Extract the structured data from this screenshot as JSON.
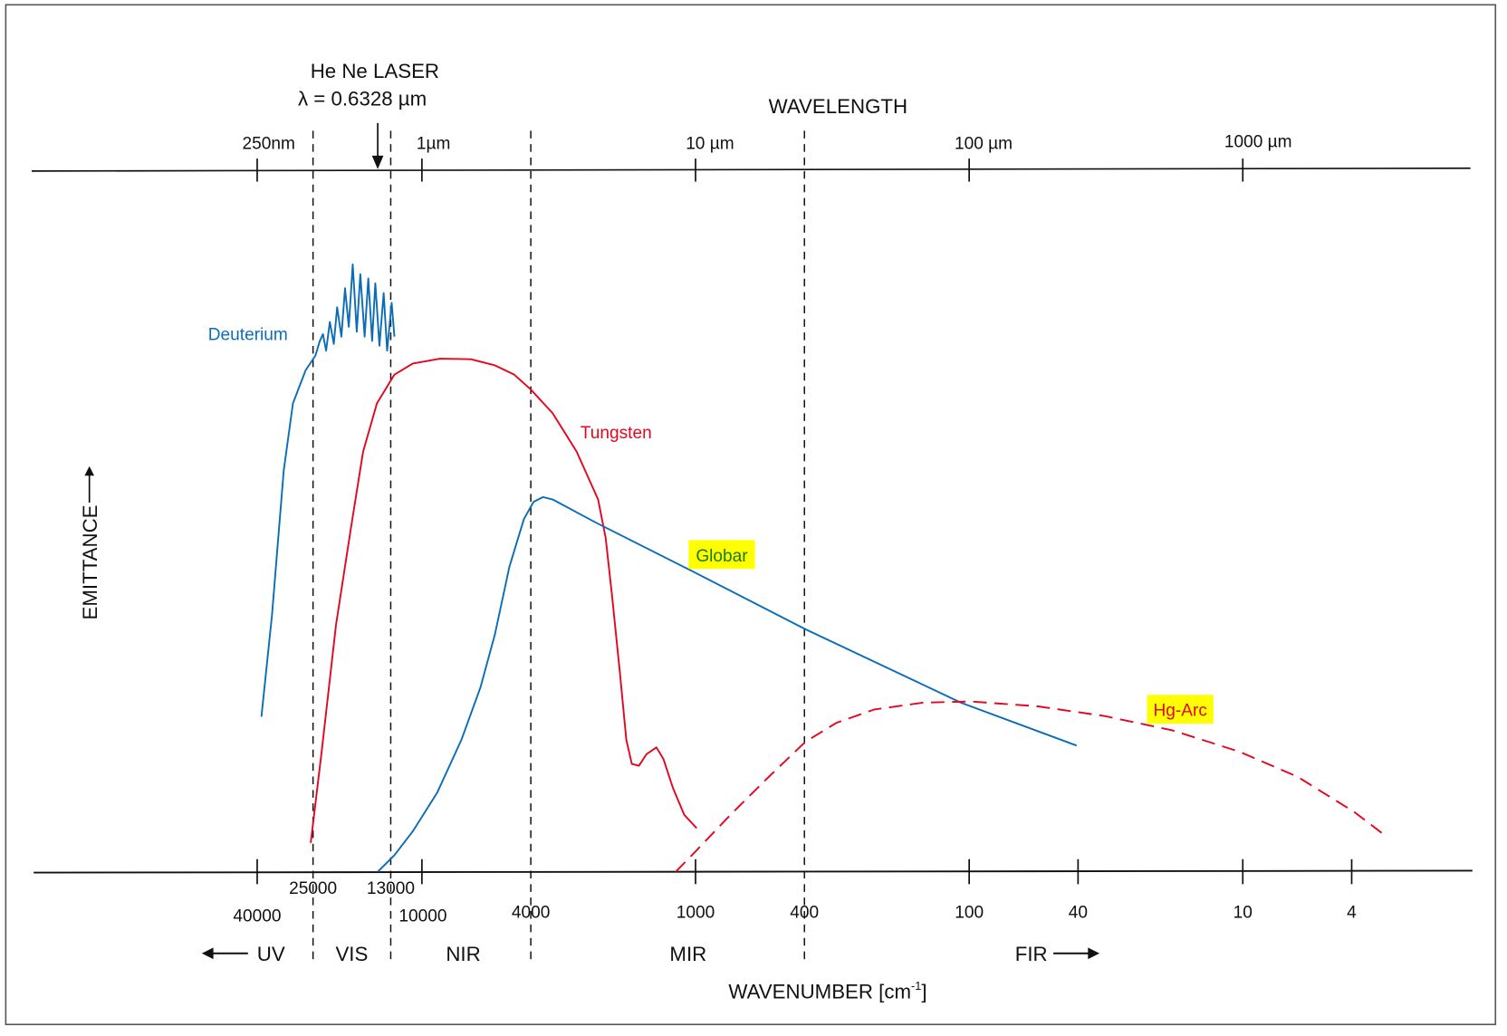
{
  "chart_data": {
    "type": "line",
    "x_scale": "log (wavenumber, decreasing to the right)",
    "top_axis": {
      "title": "WAVELENGTH",
      "ticks": [
        {
          "label": "250nm",
          "wavenumber": 40000
        },
        {
          "label": "1µm",
          "wavenumber": 10000
        },
        {
          "label": "10 µm",
          "wavenumber": 1000
        },
        {
          "label": "100 µm",
          "wavenumber": 100
        },
        {
          "label": "1000 µm",
          "wavenumber": 10
        }
      ]
    },
    "bottom_axis": {
      "title": "WAVENUMBER [cm",
      "title_sup": "-1",
      "title_close": "]",
      "ticks": [
        {
          "label": "40000",
          "wavenumber": 40000,
          "row": 2
        },
        {
          "label": "25000",
          "wavenumber": 25000,
          "row": 1,
          "notick": true
        },
        {
          "label": "13000",
          "wavenumber": 13000,
          "row": 1,
          "notick": true
        },
        {
          "label": "10000",
          "wavenumber": 10000,
          "row": 2
        },
        {
          "label": "4000",
          "wavenumber": 4000,
          "row": 2,
          "notick": true
        },
        {
          "label": "1000",
          "wavenumber": 1000,
          "row": 2
        },
        {
          "label": "400",
          "wavenumber": 400,
          "row": 2,
          "notick": true
        },
        {
          "label": "100",
          "wavenumber": 100,
          "row": 2
        },
        {
          "label": "40",
          "wavenumber": 40,
          "row": 2
        },
        {
          "label": "10",
          "wavenumber": 10,
          "row": 2
        },
        {
          "label": "4",
          "wavenumber": 4,
          "row": 2
        }
      ]
    },
    "y_axis": {
      "label": "EMITTANCE",
      "range": [
        0,
        1
      ]
    },
    "region_boundaries": [
      25000,
      13000,
      4000,
      400
    ],
    "regions": [
      {
        "label": "UV",
        "arrow": "left"
      },
      {
        "label": "VIS"
      },
      {
        "label": "NIR"
      },
      {
        "label": "MIR"
      },
      {
        "label": "FIR",
        "arrow": "right"
      }
    ],
    "annotation": {
      "line1": "He Ne  LASER",
      "line2": "λ = 0.6328 µm",
      "wavenumber": 15803
    },
    "series": [
      {
        "name": "Deuterium",
        "color": "#0b6db7",
        "style": "solid",
        "highlight": null,
        "points": [
          [
            38600,
            0.253
          ],
          [
            35300,
            0.419
          ],
          [
            32000,
            0.655
          ],
          [
            29600,
            0.765
          ],
          [
            26600,
            0.819
          ],
          [
            24500,
            0.843
          ],
          [
            23600,
            0.867
          ],
          [
            23000,
            0.878
          ],
          [
            22400,
            0.851
          ],
          [
            21700,
            0.898
          ],
          [
            21000,
            0.862
          ],
          [
            20400,
            0.922
          ],
          [
            19700,
            0.874
          ],
          [
            19100,
            0.953
          ],
          [
            18500,
            0.89
          ],
          [
            17900,
            0.992
          ],
          [
            17300,
            0.882
          ],
          [
            16800,
            0.976
          ],
          [
            16200,
            0.874
          ],
          [
            15700,
            0.969
          ],
          [
            15200,
            0.867
          ],
          [
            14800,
            0.961
          ],
          [
            14300,
            0.859
          ],
          [
            13800,
            0.945
          ],
          [
            13400,
            0.851
          ],
          [
            12900,
            0.929
          ],
          [
            12600,
            0.874
          ]
        ]
      },
      {
        "name": "Tungsten",
        "color": "#e3061e",
        "style": "solid",
        "highlight": null,
        "points": [
          [
            25500,
            0.047
          ],
          [
            23200,
            0.199
          ],
          [
            20600,
            0.403
          ],
          [
            18200,
            0.56
          ],
          [
            16400,
            0.686
          ],
          [
            14600,
            0.765
          ],
          [
            12600,
            0.812
          ],
          [
            10800,
            0.83
          ],
          [
            8580,
            0.838
          ],
          [
            6620,
            0.837
          ],
          [
            5410,
            0.827
          ],
          [
            4600,
            0.812
          ],
          [
            4010,
            0.788
          ],
          [
            3330,
            0.749
          ],
          [
            2720,
            0.686
          ],
          [
            2270,
            0.608
          ],
          [
            2130,
            0.545
          ],
          [
            2020,
            0.451
          ],
          [
            1890,
            0.325
          ],
          [
            1790,
            0.215
          ],
          [
            1710,
            0.176
          ],
          [
            1610,
            0.173
          ],
          [
            1510,
            0.192
          ],
          [
            1390,
            0.203
          ],
          [
            1310,
            0.184
          ],
          [
            1210,
            0.137
          ],
          [
            1100,
            0.093
          ],
          [
            990,
            0.071
          ]
        ]
      },
      {
        "name": "Globar",
        "color": "#0b6db7",
        "style": "solid",
        "label_color": "#1a7a1a",
        "highlight": "#ffff00",
        "points": [
          [
            14500,
            0.0
          ],
          [
            12600,
            0.027
          ],
          [
            10800,
            0.066
          ],
          [
            8790,
            0.129
          ],
          [
            7180,
            0.215
          ],
          [
            6110,
            0.301
          ],
          [
            5410,
            0.388
          ],
          [
            4790,
            0.498
          ],
          [
            4240,
            0.576
          ],
          [
            3910,
            0.604
          ],
          [
            3610,
            0.612
          ],
          [
            3330,
            0.608
          ],
          [
            2310,
            0.57
          ],
          [
            1030,
            0.491
          ],
          [
            397,
            0.396
          ],
          [
            107,
            0.276
          ],
          [
            40.5,
            0.206
          ]
        ]
      },
      {
        "name": "Hg-Arc",
        "color": "#e3061e",
        "style": "dashed",
        "highlight": "#ffff00",
        "points": [
          [
            1180,
            0.0
          ],
          [
            990,
            0.035
          ],
          [
            745,
            0.093
          ],
          [
            540,
            0.155
          ],
          [
            397,
            0.212
          ],
          [
            306,
            0.243
          ],
          [
            222,
            0.265
          ],
          [
            148,
            0.276
          ],
          [
            98.7,
            0.278
          ],
          [
            56,
            0.27
          ],
          [
            31.8,
            0.254
          ],
          [
            18.1,
            0.231
          ],
          [
            10.3,
            0.196
          ],
          [
            6.3,
            0.155
          ],
          [
            3.9,
            0.097
          ],
          [
            3.1,
            0.063
          ]
        ]
      }
    ]
  }
}
